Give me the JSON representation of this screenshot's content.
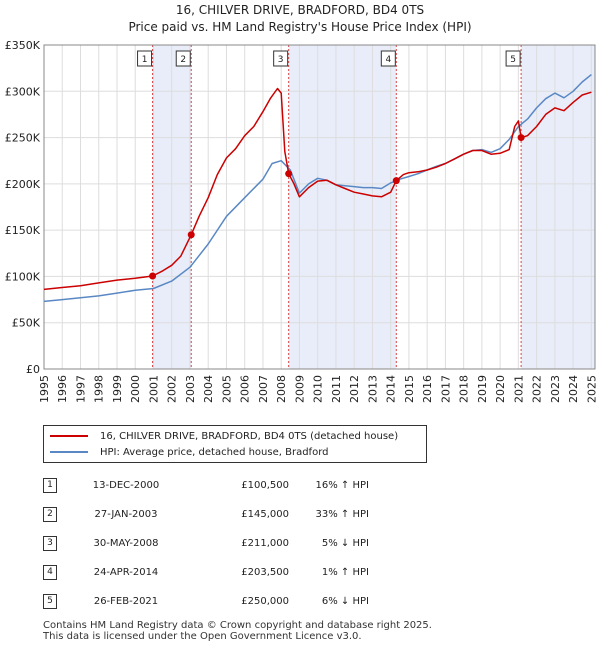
{
  "title": {
    "line1": "16, CHILVER DRIVE, BRADFORD, BD4 0TS",
    "line2": "Price paid vs. HM Land Registry's House Price Index (HPI)"
  },
  "chart_data": {
    "type": "line",
    "title": "16, CHILVER DRIVE, BRADFORD, BD4 0TS — Price paid vs. HM Land Registry's House Price Index (HPI)",
    "xlabel": "",
    "ylabel": "",
    "xlim": [
      1995,
      2025.2
    ],
    "ylim": [
      0,
      350000
    ],
    "x_ticks": [
      "1995",
      "1996",
      "1997",
      "1998",
      "1999",
      "2000",
      "2001",
      "2002",
      "2003",
      "2004",
      "2005",
      "2006",
      "2007",
      "2008",
      "2009",
      "2010",
      "2011",
      "2012",
      "2013",
      "2014",
      "2015",
      "2016",
      "2017",
      "2018",
      "2019",
      "2020",
      "2021",
      "2022",
      "2023",
      "2024",
      "2025"
    ],
    "y_ticks": [
      {
        "value": 0,
        "label": "£0"
      },
      {
        "value": 50000,
        "label": "£50K"
      },
      {
        "value": 100000,
        "label": "£100K"
      },
      {
        "value": 150000,
        "label": "£150K"
      },
      {
        "value": 200000,
        "label": "£200K"
      },
      {
        "value": 250000,
        "label": "£250K"
      },
      {
        "value": 300000,
        "label": "£300K"
      },
      {
        "value": 350000,
        "label": "£350K"
      }
    ],
    "grid": true,
    "shaded_ranges": [
      [
        2000.95,
        2003.07
      ],
      [
        2008.41,
        2014.31
      ],
      [
        2021.15,
        2025.2
      ]
    ],
    "series": [
      {
        "name": "16, CHILVER DRIVE, BRADFORD, BD4 0TS (detached house)",
        "color": "#cc0000",
        "x": [
          1995,
          1996,
          1997,
          1998,
          1999,
          2000,
          2000.95,
          2001.5,
          2002,
          2002.5,
          2003.07,
          2003.5,
          2004,
          2004.5,
          2005,
          2005.5,
          2006,
          2006.5,
          2007,
          2007.4,
          2007.8,
          2008,
          2008.2,
          2008.41,
          2008.7,
          2009,
          2009.5,
          2010,
          2010.5,
          2011,
          2011.5,
          2012,
          2012.5,
          2013,
          2013.5,
          2014,
          2014.31,
          2014.7,
          2015,
          2015.5,
          2016,
          2016.5,
          2017,
          2017.5,
          2018,
          2018.5,
          2019,
          2019.5,
          2020,
          2020.5,
          2020.8,
          2021,
          2021.15,
          2021.5,
          2022,
          2022.5,
          2023,
          2023.5,
          2024,
          2024.5,
          2025
        ],
        "values": [
          86000,
          88000,
          90000,
          93000,
          96000,
          98000,
          100500,
          106000,
          112000,
          122000,
          145000,
          165000,
          185000,
          210000,
          228000,
          238000,
          252000,
          262000,
          278000,
          292000,
          303000,
          298000,
          235000,
          211000,
          200000,
          186000,
          196000,
          203000,
          204000,
          199000,
          195000,
          191000,
          189000,
          187000,
          186000,
          191000,
          203500,
          210000,
          212000,
          213000,
          215000,
          218000,
          222000,
          227000,
          232000,
          236000,
          236000,
          232000,
          233000,
          237000,
          262000,
          268000,
          250000,
          252000,
          262000,
          275000,
          282000,
          279000,
          288000,
          296000,
          299000
        ]
      },
      {
        "name": "HPI: Average price, detached house, Bradford",
        "color": "#5a88c4",
        "x": [
          1995,
          1996,
          1997,
          1998,
          1999,
          2000,
          2001,
          2002,
          2003,
          2004,
          2005,
          2006,
          2007,
          2007.5,
          2008,
          2008.5,
          2009,
          2009.5,
          2010,
          2010.5,
          2011,
          2011.5,
          2012,
          2012.5,
          2013,
          2013.5,
          2014,
          2014.5,
          2015,
          2015.5,
          2016,
          2016.5,
          2017,
          2017.5,
          2018,
          2018.5,
          2019,
          2019.5,
          2020,
          2020.5,
          2021,
          2021.5,
          2022,
          2022.5,
          2023,
          2023.5,
          2024,
          2024.5,
          2025
        ],
        "values": [
          73000,
          75000,
          77000,
          79000,
          82000,
          85000,
          87000,
          95000,
          110000,
          135000,
          165000,
          185000,
          205000,
          222000,
          225000,
          215000,
          190000,
          200000,
          206000,
          204000,
          199000,
          198000,
          197000,
          196000,
          196000,
          195000,
          201000,
          205000,
          208000,
          211000,
          215000,
          219000,
          222000,
          227000,
          232000,
          236000,
          237000,
          234000,
          238000,
          248000,
          262000,
          270000,
          282000,
          292000,
          298000,
          293000,
          300000,
          310000,
          318000
        ]
      }
    ],
    "markers": [
      {
        "id": "1",
        "x": 2000.95,
        "value": 100500
      },
      {
        "id": "2",
        "x": 2003.07,
        "value": 145000
      },
      {
        "id": "3",
        "x": 2008.41,
        "value": 211000
      },
      {
        "id": "4",
        "x": 2014.31,
        "value": 203500
      },
      {
        "id": "5",
        "x": 2021.15,
        "value": 250000
      }
    ]
  },
  "legend": {
    "entries": [
      {
        "label": "16, CHILVER DRIVE, BRADFORD, BD4 0TS (detached house)",
        "color": "#cc0000"
      },
      {
        "label": "HPI: Average price, detached house, Bradford",
        "color": "#5a88c4"
      }
    ]
  },
  "sales": [
    {
      "num": "1",
      "date": "13-DEC-2000",
      "price": "£100,500",
      "hpi": "16% ↑ HPI"
    },
    {
      "num": "2",
      "date": "27-JAN-2003",
      "price": "£145,000",
      "hpi": "33% ↑ HPI"
    },
    {
      "num": "3",
      "date": "30-MAY-2008",
      "price": "£211,000",
      "hpi": "5% ↓ HPI"
    },
    {
      "num": "4",
      "date": "24-APR-2014",
      "price": "£203,500",
      "hpi": "1% ↑ HPI"
    },
    {
      "num": "5",
      "date": "26-FEB-2021",
      "price": "£250,000",
      "hpi": "6% ↓ HPI"
    }
  ],
  "footer": {
    "line1": "Contains HM Land Registry data © Crown copyright and database right 2025.",
    "line2": "This data is licensed under the Open Government Licence v3.0."
  }
}
